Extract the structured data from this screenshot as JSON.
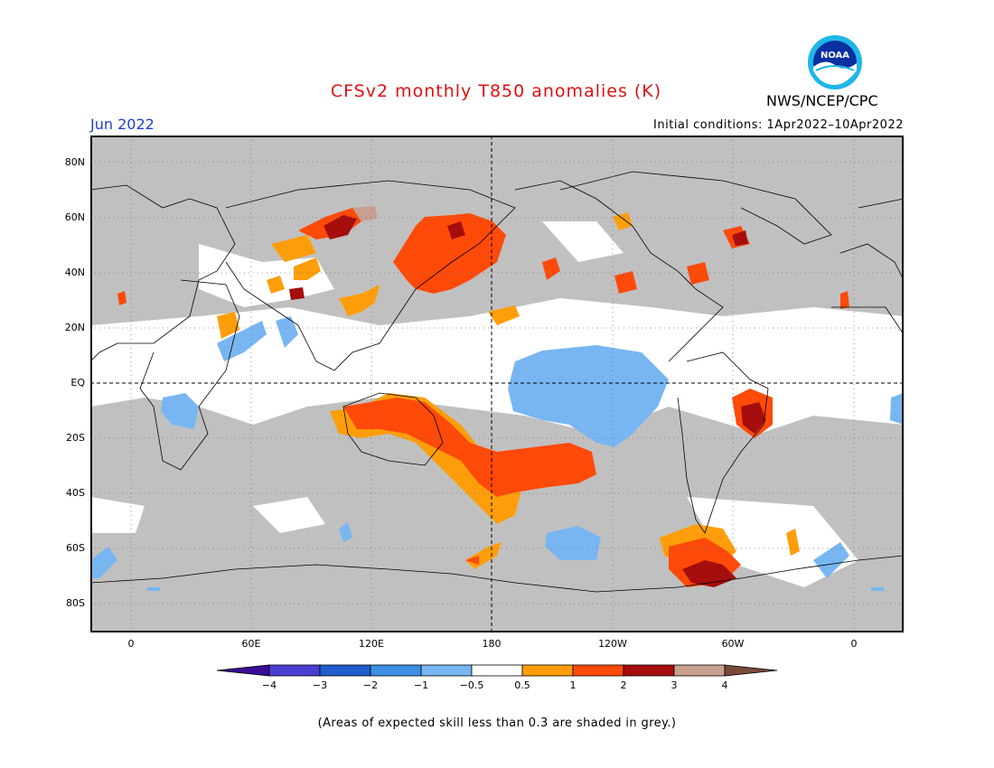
{
  "title": "CFSv2 monthly T850 anomalies (K)",
  "month": "Jun 2022",
  "initial_conditions": "Initial conditions: 1Apr2022–10Apr2022",
  "agency": "NWS/NCEP/CPC",
  "logo_text": "NOAA",
  "lat_labels": [
    "80N",
    "60N",
    "40N",
    "20N",
    "EQ",
    "20S",
    "40S",
    "60S",
    "80S"
  ],
  "lon_labels": [
    "0",
    "60E",
    "120E",
    "180",
    "120W",
    "60W",
    "0"
  ],
  "colorbar": {
    "labels": [
      "−4",
      "−3",
      "−2",
      "−1",
      "−0.5",
      "0.5",
      "1",
      "2",
      "3",
      "4"
    ],
    "colors": [
      "#3a0d99",
      "#4a3fd0",
      "#1f5ecc",
      "#3d8fe6",
      "#78b6f2",
      "#ffffff",
      "#ff9e0a",
      "#ff4a0a",
      "#a60d0d",
      "#c8a090",
      "#7a4a3a"
    ]
  },
  "footnote": "(Areas of expected skill less than 0.3 are shaded in grey.)",
  "colors": {
    "grey": "#c0c0c0",
    "title_red": "#e01010",
    "month_blue": "#1f3fd0"
  }
}
